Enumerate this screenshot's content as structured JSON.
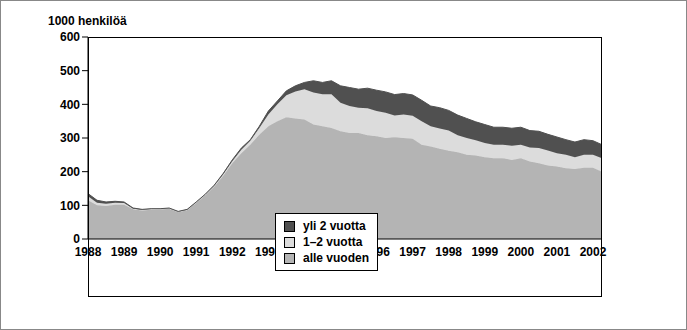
{
  "chart_data": {
    "type": "area",
    "stacked": true,
    "y_label": "1000 henkilöä",
    "legend": "center",
    "ylim": [
      0,
      600
    ],
    "yticks": [
      0,
      100,
      200,
      300,
      400,
      500,
      600
    ],
    "categories": [
      "1988",
      null,
      null,
      null,
      "1989",
      null,
      null,
      null,
      "1990",
      null,
      null,
      null,
      "1991",
      null,
      null,
      null,
      "1992",
      null,
      null,
      null,
      "1993",
      null,
      null,
      null,
      "1994",
      null,
      null,
      null,
      "1995",
      null,
      null,
      null,
      "1996",
      null,
      null,
      null,
      "1997",
      null,
      null,
      null,
      "1998",
      null,
      null,
      null,
      "1999",
      null,
      null,
      null,
      "2000",
      null,
      null,
      null,
      "2001",
      null,
      null,
      null,
      "2002",
      null
    ],
    "series": [
      {
        "name": "yli 2 vuotta",
        "color": "#505050",
        "values": [
          8,
          7,
          5,
          4,
          3,
          2,
          1,
          1,
          1,
          1,
          1,
          1,
          1,
          1,
          2,
          3,
          4,
          5,
          3,
          5,
          10,
          10,
          13,
          17,
          20,
          35,
          35,
          40,
          50,
          55,
          55,
          60,
          62,
          62,
          62,
          62,
          62,
          62,
          60,
          62,
          60,
          60,
          58,
          55,
          55,
          52,
          52,
          52,
          52,
          50,
          50,
          48,
          48,
          45,
          45,
          45,
          42,
          40
        ]
      },
      {
        "name": "1–2 vuotta",
        "color": "#dcdcdc",
        "values": [
          12,
          8,
          7,
          6,
          5,
          2,
          2,
          2,
          1,
          1,
          1,
          1,
          1,
          2,
          3,
          4,
          6,
          10,
          12,
          20,
          35,
          50,
          65,
          80,
          90,
          95,
          95,
          100,
          85,
          80,
          75,
          80,
          75,
          75,
          65,
          70,
          68,
          70,
          60,
          60,
          60,
          50,
          50,
          45,
          42,
          40,
          40,
          42,
          40,
          42,
          45,
          45,
          40,
          40,
          35,
          38,
          38,
          40
        ]
      },
      {
        "name": "alle vuoden",
        "color": "#b4b4b4",
        "values": [
          115,
          100,
          98,
          102,
          102,
          88,
          85,
          87,
          88,
          90,
          80,
          86,
          108,
          130,
          155,
          188,
          225,
          255,
          280,
          310,
          335,
          350,
          362,
          358,
          355,
          340,
          335,
          330,
          320,
          315,
          315,
          308,
          305,
          300,
          302,
          300,
          298,
          280,
          275,
          268,
          262,
          258,
          250,
          248,
          243,
          240,
          240,
          235,
          240,
          230,
          225,
          218,
          215,
          210,
          208,
          212,
          212,
          200
        ]
      }
    ]
  }
}
